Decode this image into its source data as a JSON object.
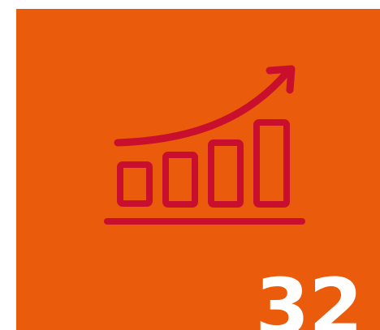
{
  "tile": {
    "number": "32",
    "icon": "growth-chart-icon",
    "background_color": "#ea5b0c",
    "icon_color": "#c8102e",
    "number_color": "#ffffff"
  }
}
